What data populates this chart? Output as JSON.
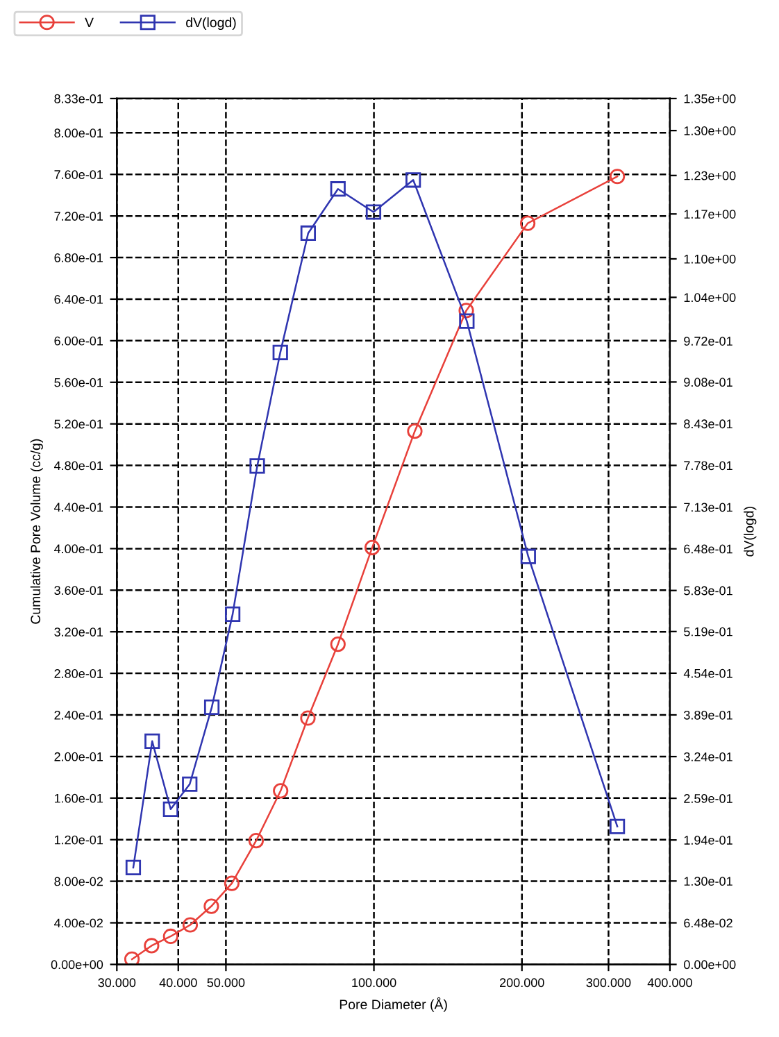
{
  "chart_data": {
    "type": "line",
    "xlabel": "Pore Diameter (Å)",
    "ylabel": "Cumulative Pore Volume (cc/g)",
    "y2label": "dV(logd)",
    "log": "x",
    "grid": true,
    "legend": "top left",
    "line_style": "solid",
    "xlim": [
      30,
      400
    ],
    "xticks": [
      {
        "value": 30,
        "label": "30.000"
      },
      {
        "value": 40,
        "label": "40.000"
      },
      {
        "value": 50,
        "label": "50.000"
      },
      {
        "value": 100,
        "label": "100.000"
      },
      {
        "value": 200,
        "label": "200.000"
      },
      {
        "value": 300,
        "label": "300.000"
      },
      {
        "value": 400,
        "label": "400.000"
      }
    ],
    "ylim": [
      0,
      0.833
    ],
    "yticks": [
      {
        "value": 0,
        "label": "0.00e+00"
      },
      {
        "value": 0.04,
        "label": "4.00e-02"
      },
      {
        "value": 0.08,
        "label": "8.00e-02"
      },
      {
        "value": 0.12,
        "label": "1.20e-01"
      },
      {
        "value": 0.16,
        "label": "1.60e-01"
      },
      {
        "value": 0.2,
        "label": "2.00e-01"
      },
      {
        "value": 0.24,
        "label": "2.40e-01"
      },
      {
        "value": 0.28,
        "label": "2.80e-01"
      },
      {
        "value": 0.32,
        "label": "3.20e-01"
      },
      {
        "value": 0.36,
        "label": "3.60e-01"
      },
      {
        "value": 0.4,
        "label": "4.00e-01"
      },
      {
        "value": 0.44,
        "label": "4.40e-01"
      },
      {
        "value": 0.48,
        "label": "4.80e-01"
      },
      {
        "value": 0.52,
        "label": "5.20e-01"
      },
      {
        "value": 0.56,
        "label": "5.60e-01"
      },
      {
        "value": 0.6,
        "label": "6.00e-01"
      },
      {
        "value": 0.64,
        "label": "6.40e-01"
      },
      {
        "value": 0.68,
        "label": "6.80e-01"
      },
      {
        "value": 0.72,
        "label": "7.20e-01"
      },
      {
        "value": 0.76,
        "label": "7.60e-01"
      },
      {
        "value": 0.8,
        "label": "8.00e-01"
      },
      {
        "value": 0.833,
        "label": "8.33e-01"
      }
    ],
    "y2lim": [
      0,
      1.35
    ],
    "y2ticks": [
      {
        "value": 0,
        "label": "0.00e+00"
      },
      {
        "value": 0.0648,
        "label": "6.48e-02"
      },
      {
        "value": 0.13,
        "label": "1.30e-01"
      },
      {
        "value": 0.194,
        "label": "1.94e-01"
      },
      {
        "value": 0.259,
        "label": "2.59e-01"
      },
      {
        "value": 0.324,
        "label": "3.24e-01"
      },
      {
        "value": 0.389,
        "label": "3.89e-01"
      },
      {
        "value": 0.454,
        "label": "4.54e-01"
      },
      {
        "value": 0.519,
        "label": "5.19e-01"
      },
      {
        "value": 0.583,
        "label": "5.83e-01"
      },
      {
        "value": 0.648,
        "label": "6.48e-01"
      },
      {
        "value": 0.713,
        "label": "7.13e-01"
      },
      {
        "value": 0.778,
        "label": "7.78e-01"
      },
      {
        "value": 0.843,
        "label": "8.43e-01"
      },
      {
        "value": 0.908,
        "label": "9.08e-01"
      },
      {
        "value": 0.972,
        "label": "9.72e-01"
      },
      {
        "value": 1.04,
        "label": "1.04e+00"
      },
      {
        "value": 1.1,
        "label": "1.10e+00"
      },
      {
        "value": 1.17,
        "label": "1.17e+00"
      },
      {
        "value": 1.23,
        "label": "1.23e+00"
      },
      {
        "value": 1.3,
        "label": "1.30e+00"
      },
      {
        "value": 1.35,
        "label": "1.35e+00"
      }
    ],
    "series": [
      {
        "name": "V",
        "color": "#e8403a",
        "marker": "circle",
        "x": [
          32.2,
          35.3,
          38.6,
          42.3,
          46.7,
          51.4,
          57.6,
          64.6,
          73.4,
          84.5,
          99.2,
          121.1,
          154.1,
          205.5,
          312.6
        ],
        "values": [
          0.005,
          0.018,
          0.027,
          0.038,
          0.056,
          0.078,
          0.119,
          0.167,
          0.237,
          0.308,
          0.401,
          0.513,
          0.629,
          0.713,
          0.758
        ]
      },
      {
        "name": "dV(logd)",
        "color": "#2f35b0",
        "marker": "square",
        "axis": "y2",
        "x": [
          32.4,
          35.4,
          38.6,
          42.2,
          46.8,
          51.6,
          57.9,
          64.5,
          73.5,
          84.5,
          99.8,
          120.2,
          154.5,
          206.0,
          312.6
        ],
        "values": [
          0.151,
          0.348,
          0.242,
          0.281,
          0.401,
          0.546,
          0.777,
          0.954,
          1.14,
          1.209,
          1.173,
          1.223,
          1.003,
          0.636,
          0.215
        ]
      }
    ]
  }
}
